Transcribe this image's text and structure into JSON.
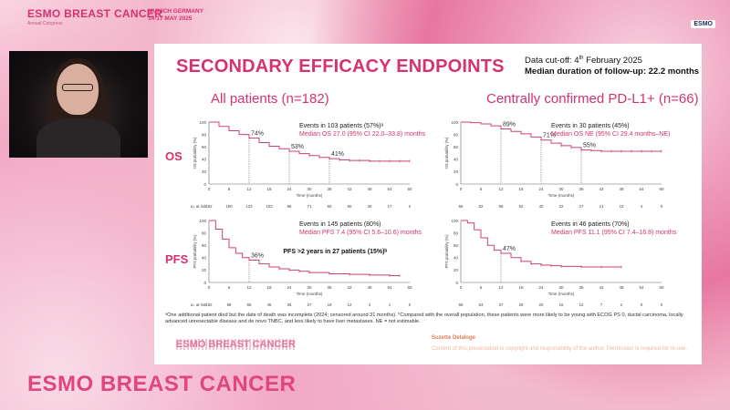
{
  "header": {
    "brand": "ESMO BREAST CANCER",
    "brand_sub": "Annual Congress",
    "city": "MUNICH GERMANY",
    "dates": "14-17 MAY 2025",
    "logo": "ESMO"
  },
  "slide": {
    "title": "SECONDARY EFFICACY ENDPOINTS",
    "cutoff_prefix": "Data cut-off: 4",
    "cutoff_sup": "th",
    "cutoff_suffix": " February 2025",
    "followup": "Median duration of follow-up: 22.2 months",
    "col_all": "All patients (n=182)",
    "col_pdl1": "Centrally confirmed PD-L1+ (n=66)",
    "row_os": "OS",
    "row_pfs": "PFS",
    "footnote": "ᵃOne additional patient died but the date of death was incomplete (2024; censored around 31 months). ᵇCompared with the overall population, these patients were more likely to be young with ECOG PS 0, ductal carcinoma, locally advanced unresectable disease and de novo TNBC, and less likely to have liver metastases. NE = not estimable.",
    "brand": "ESMO BREAST CANCER",
    "author": "Suzette Delaloge",
    "copyright": "Content of this presentation is copyright and responsibility of the author. Permission is required for re-use."
  },
  "bottom_brand": "ESMO BREAST CANCER",
  "colors": {
    "accent": "#d5326f",
    "curve": "#c9427a"
  },
  "chart_data": [
    {
      "type": "line",
      "id": "os_all",
      "x": [
        0,
        3,
        6,
        9,
        12,
        15,
        18,
        21,
        24,
        27,
        30,
        33,
        36,
        39,
        42,
        45,
        48,
        51,
        54,
        57,
        60
      ],
      "values": [
        100,
        93,
        86,
        80,
        74,
        67,
        61,
        57,
        53,
        49,
        46,
        43,
        41,
        39,
        38,
        38,
        37,
        37,
        37,
        37,
        37
      ],
      "xlim": [
        0,
        60
      ],
      "ylim": [
        0,
        100
      ],
      "xticks": [
        0,
        6,
        12,
        18,
        24,
        30,
        36,
        42,
        48,
        54,
        60
      ],
      "yticks": [
        0,
        20,
        40,
        60,
        80,
        100
      ],
      "ylabel": "OS probability (%)",
      "xlabel": "Time (months)",
      "annotations": [
        {
          "x": 12,
          "label": "74%"
        },
        {
          "x": 24,
          "label": "53%"
        },
        {
          "x": 36,
          "label": "41%"
        }
      ],
      "events": "Events in 103 patients (57%)ᵃ",
      "median": "Median OS 27.0 (95% CI 22.0–33.8) months",
      "at_risk_label": "No. at risk",
      "at_risk": [
        "182",
        "150",
        "123",
        "103",
        "86",
        "71",
        "60",
        "50",
        "30",
        "17",
        "0"
      ]
    },
    {
      "type": "line",
      "id": "os_pdl1",
      "x": [
        0,
        3,
        6,
        9,
        12,
        15,
        18,
        21,
        24,
        27,
        30,
        33,
        36,
        39,
        42,
        45,
        48,
        51,
        54,
        57,
        60
      ],
      "values": [
        100,
        99,
        97,
        94,
        89,
        85,
        81,
        76,
        71,
        66,
        62,
        59,
        55,
        54,
        53,
        53,
        53,
        53,
        53,
        53,
        53
      ],
      "xlim": [
        0,
        60
      ],
      "ylim": [
        0,
        100
      ],
      "xticks": [
        0,
        6,
        12,
        18,
        24,
        30,
        36,
        42,
        48,
        54,
        60
      ],
      "yticks": [
        0,
        20,
        40,
        60,
        80,
        100
      ],
      "ylabel": "OS probability (%)",
      "xlabel": "Time (months)",
      "annotations": [
        {
          "x": 12,
          "label": "89%"
        },
        {
          "x": 24,
          "label": "71%"
        },
        {
          "x": 36,
          "label": "55%"
        }
      ],
      "events": "Events in 30 patients (45%)",
      "median": "Median OS NE (95% CI 29.4 months–NE)",
      "at_risk_label": "",
      "at_risk": [
        "66",
        "62",
        "59",
        "52",
        "40",
        "32",
        "27",
        "21",
        "10",
        "4",
        "0"
      ]
    },
    {
      "type": "line",
      "id": "pfs_all",
      "x": [
        0,
        2,
        4,
        6,
        8,
        10,
        12,
        15,
        18,
        21,
        24,
        27,
        30,
        36,
        42,
        48,
        54,
        57
      ],
      "values": [
        100,
        86,
        70,
        56,
        47,
        40,
        36,
        30,
        25,
        22,
        20,
        18,
        16,
        14,
        13,
        12,
        11,
        11
      ],
      "xlim": [
        0,
        60
      ],
      "ylim": [
        0,
        100
      ],
      "xticks": [
        0,
        6,
        12,
        18,
        24,
        30,
        36,
        42,
        48,
        54,
        60
      ],
      "yticks": [
        0,
        20,
        40,
        60,
        80,
        100
      ],
      "ylabel": "PFS probability (%)",
      "xlabel": "Time (months)",
      "annotations": [
        {
          "x": 12,
          "label": "36%"
        }
      ],
      "events": "Events in 145 patients (80%)",
      "median": "Median PFS 7.4 (95% CI 5.6–10.6) months",
      "extra": "PFS >2 years in 27 patients (15%)ᵇ",
      "at_risk_label": "No. at risk",
      "at_risk": [
        "182",
        "98",
        "65",
        "46",
        "36",
        "27",
        "19",
        "12",
        "4",
        "1",
        "0"
      ]
    },
    {
      "type": "line",
      "id": "pfs_pdl1",
      "x": [
        0,
        2,
        4,
        6,
        8,
        10,
        12,
        15,
        18,
        21,
        24,
        27,
        30,
        36,
        42,
        48
      ],
      "values": [
        100,
        96,
        85,
        72,
        60,
        52,
        47,
        40,
        34,
        30,
        28,
        27,
        26,
        25,
        25,
        25
      ],
      "xlim": [
        0,
        60
      ],
      "ylim": [
        0,
        100
      ],
      "xticks": [
        0,
        6,
        12,
        18,
        24,
        30,
        36,
        42,
        48,
        54,
        60
      ],
      "yticks": [
        0,
        20,
        40,
        60,
        80,
        100
      ],
      "ylabel": "PFS probability (%)",
      "xlabel": "Time (months)",
      "annotations": [
        {
          "x": 12,
          "label": "47%"
        }
      ],
      "events": "Events in 46 patients (70%)",
      "median": "Median PFS 11.1 (95% CI 7.4–16.8) months",
      "at_risk_label": "",
      "at_risk": [
        "66",
        "53",
        "37",
        "26",
        "20",
        "16",
        "12",
        "7",
        "2",
        "0",
        "0"
      ]
    }
  ]
}
